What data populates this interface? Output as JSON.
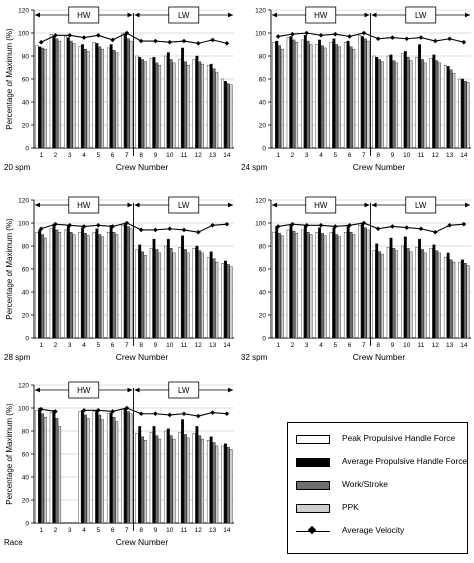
{
  "colors": {
    "peak": "#ffffff",
    "avg": "#000000",
    "work": "#6e6e6e",
    "ppk": "#cfcfcf",
    "velocity": "#000000"
  },
  "legend": {
    "items": [
      {
        "label": "Peak Propulsive Handle Force",
        "key": "peak"
      },
      {
        "label": "Average Propulsive Handle Force",
        "key": "avg"
      },
      {
        "label": "Work/Stroke",
        "key": "work"
      },
      {
        "label": "PPK",
        "key": "ppk"
      },
      {
        "label": "Average Velocity",
        "key": "velocity"
      }
    ]
  },
  "chart_data": [
    {
      "type": "bar",
      "panel_label": "20 spm",
      "xlabel": "Crew Number",
      "ylabel": "Percentage of Maximum (%)",
      "ylim": [
        0,
        120
      ],
      "yticks": [
        0,
        20,
        40,
        60,
        80,
        100,
        120
      ],
      "categories": [
        "1",
        "2",
        "3",
        "4",
        "5",
        "6",
        "7",
        "8",
        "9",
        "10",
        "11",
        "12",
        "13",
        "14"
      ],
      "hw_label": "HW",
      "lw_label": "LW",
      "series": [
        {
          "name": "Peak Propulsive Handle Force",
          "values": [
            89,
            99,
            97,
            88,
            92,
            87,
            100,
            80,
            78,
            80,
            77,
            77,
            72,
            60
          ]
        },
        {
          "name": "Average Propulsive Handle Force",
          "values": [
            88,
            97,
            96,
            90,
            91,
            90,
            99,
            79,
            79,
            83,
            87,
            80,
            73,
            58
          ]
        },
        {
          "name": "Work/Stroke",
          "values": [
            87,
            95,
            93,
            86,
            88,
            85,
            95,
            77,
            74,
            77,
            75,
            75,
            69,
            56
          ]
        },
        {
          "name": "PPK",
          "values": [
            86,
            93,
            91,
            84,
            86,
            83,
            93,
            75,
            72,
            74,
            72,
            73,
            66,
            55
          ]
        },
        {
          "name": "Average Velocity",
          "values": [
            92,
            98,
            98,
            96,
            98,
            94,
            100,
            93,
            93,
            92,
            93,
            91,
            94,
            91
          ]
        }
      ]
    },
    {
      "type": "bar",
      "panel_label": "24 spm",
      "xlabel": "Crew Number",
      "ylabel": "",
      "ylim": [
        0,
        120
      ],
      "yticks": [
        0,
        20,
        40,
        60,
        80,
        100,
        120
      ],
      "categories": [
        "1",
        "2",
        "3",
        "4",
        "5",
        "6",
        "7",
        "8",
        "9",
        "10",
        "11",
        "12",
        "13",
        "14"
      ],
      "hw_label": "HW",
      "lw_label": "LW",
      "series": [
        {
          "name": "Peak Propulsive Handle Force",
          "values": [
            92,
            96,
            94,
            90,
            92,
            92,
            98,
            80,
            80,
            82,
            79,
            78,
            72,
            60
          ]
        },
        {
          "name": "Average Propulsive Handle Force",
          "values": [
            93,
            97,
            98,
            94,
            95,
            93,
            97,
            79,
            81,
            84,
            90,
            81,
            71,
            60
          ]
        },
        {
          "name": "Work/Stroke",
          "values": [
            89,
            94,
            93,
            89,
            90,
            88,
            95,
            77,
            76,
            79,
            77,
            76,
            68,
            58
          ]
        },
        {
          "name": "PPK",
          "values": [
            86,
            92,
            90,
            87,
            88,
            86,
            93,
            75,
            74,
            76,
            74,
            74,
            65,
            57
          ]
        },
        {
          "name": "Average Velocity",
          "values": [
            97,
            99,
            100,
            98,
            99,
            97,
            100,
            95,
            96,
            95,
            96,
            93,
            95,
            92
          ]
        }
      ]
    },
    {
      "type": "bar",
      "panel_label": "28 spm",
      "xlabel": "Crew Number",
      "ylabel": "Percentage of Maximum (%)",
      "ylim": [
        0,
        120
      ],
      "yticks": [
        0,
        20,
        40,
        60,
        80,
        100,
        120
      ],
      "categories": [
        "1",
        "2",
        "3",
        "4",
        "5",
        "6",
        "7",
        "8",
        "9",
        "10",
        "11",
        "12",
        "13",
        "14"
      ],
      "hw_label": "HW",
      "lw_label": "LW",
      "series": [
        {
          "name": "Peak Propulsive Handle Force",
          "values": [
            92,
            95,
            94,
            92,
            92,
            92,
            98,
            77,
            78,
            80,
            79,
            78,
            70,
            65
          ]
        },
        {
          "name": "Average Propulsive Handle Force",
          "values": [
            94,
            99,
            98,
            96,
            95,
            98,
            100,
            81,
            86,
            86,
            89,
            80,
            75,
            67
          ]
        },
        {
          "name": "Work/Stroke",
          "values": [
            90,
            94,
            92,
            91,
            90,
            92,
            97,
            75,
            77,
            78,
            77,
            76,
            69,
            64
          ]
        },
        {
          "name": "PPK",
          "values": [
            87,
            92,
            90,
            89,
            88,
            90,
            95,
            72,
            74,
            74,
            74,
            74,
            66,
            62
          ]
        },
        {
          "name": "Average Velocity",
          "values": [
            95,
            99,
            98,
            97,
            98,
            97,
            100,
            94,
            94,
            95,
            94,
            92,
            98,
            99
          ]
        }
      ]
    },
    {
      "type": "bar",
      "panel_label": "32 spm",
      "xlabel": "Crew Number",
      "ylabel": "",
      "ylim": [
        0,
        120
      ],
      "yticks": [
        0,
        20,
        40,
        60,
        80,
        100,
        120
      ],
      "categories": [
        "1",
        "2",
        "3",
        "4",
        "5",
        "6",
        "7",
        "8",
        "9",
        "10",
        "11",
        "12",
        "13",
        "14"
      ],
      "hw_label": "HW",
      "lw_label": "LW",
      "series": [
        {
          "name": "Peak Propulsive Handle Force",
          "values": [
            92,
            94,
            94,
            92,
            92,
            92,
            98,
            76,
            79,
            80,
            79,
            78,
            70,
            66
          ]
        },
        {
          "name": "Average Propulsive Handle Force",
          "values": [
            97,
            99,
            98,
            96,
            96,
            98,
            100,
            82,
            87,
            88,
            86,
            81,
            74,
            68
          ]
        },
        {
          "name": "Work/Stroke",
          "values": [
            91,
            93,
            92,
            91,
            90,
            92,
            96,
            75,
            78,
            78,
            77,
            76,
            68,
            65
          ]
        },
        {
          "name": "PPK",
          "values": [
            89,
            91,
            90,
            89,
            88,
            90,
            94,
            73,
            76,
            75,
            74,
            74,
            66,
            63
          ]
        },
        {
          "name": "Average Velocity",
          "values": [
            97,
            99,
            98,
            98,
            97,
            98,
            100,
            95,
            97,
            96,
            95,
            92,
            98,
            99
          ]
        }
      ]
    },
    {
      "type": "bar",
      "panel_label": "Race",
      "xlabel": "Crew Number",
      "ylabel": "Percentage of Maximum (%)",
      "ylim": [
        0,
        120
      ],
      "yticks": [
        0,
        20,
        40,
        60,
        80,
        100,
        120
      ],
      "categories": [
        "1",
        "2",
        "3",
        "4",
        "5",
        "6",
        "7",
        "8",
        "9",
        "10",
        "11",
        "12",
        "13",
        "14"
      ],
      "hw_label": "HW",
      "lw_label": "LW",
      "series": [
        {
          "name": "Peak Propulsive Handle Force",
          "values": [
            98,
            96,
            null,
            97,
            97,
            95,
            99,
            78,
            79,
            80,
            79,
            78,
            72,
            67
          ]
        },
        {
          "name": "Average Propulsive Handle Force",
          "values": [
            100,
            98,
            null,
            98,
            98,
            96,
            100,
            84,
            84,
            82,
            90,
            84,
            75,
            69
          ]
        },
        {
          "name": "Work/Stroke",
          "values": [
            95,
            91,
            null,
            94,
            94,
            92,
            97,
            75,
            76,
            76,
            77,
            76,
            70,
            66
          ]
        },
        {
          "name": "PPK",
          "values": [
            92,
            84,
            null,
            91,
            90,
            88,
            95,
            72,
            73,
            73,
            74,
            73,
            67,
            64
          ]
        },
        {
          "name": "Average Velocity",
          "values": [
            99,
            97,
            null,
            98,
            98,
            97,
            100,
            95,
            95,
            94,
            95,
            93,
            96,
            95
          ]
        }
      ]
    }
  ]
}
